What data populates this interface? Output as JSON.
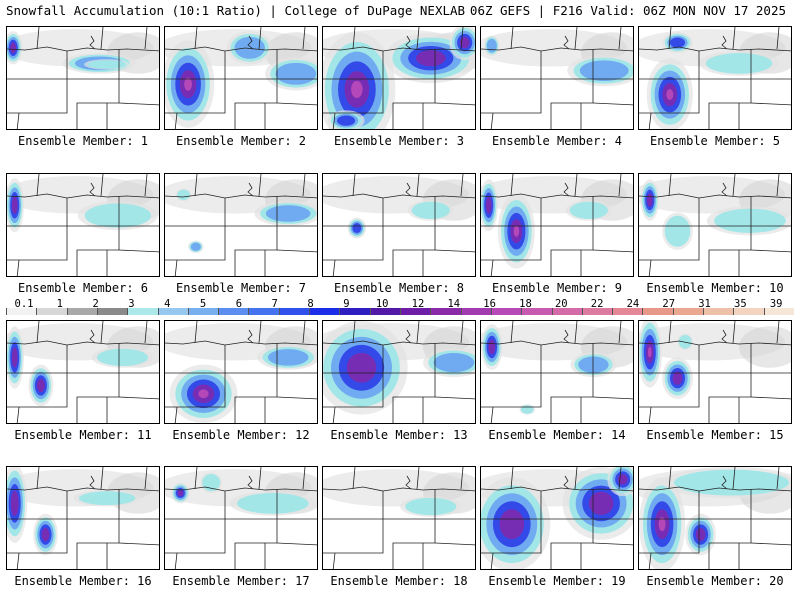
{
  "header": {
    "left": "Snowfall Accumulation (10:1 Ratio) | College of DuPage NEXLAB",
    "right": "06Z GEFS | F216 Valid: 06Z MON NOV 17 2025"
  },
  "colorbar": {
    "labels": [
      "0.1",
      "1",
      "2",
      "3",
      "4",
      "5",
      "6",
      "7",
      "8",
      "9",
      "10",
      "12",
      "14",
      "16",
      "18",
      "20",
      "22",
      "24",
      "27",
      "31",
      "35",
      "39"
    ],
    "colors": [
      "#f2f2f2",
      "#d7d7d7",
      "#a8a8a8",
      "#8a8a8a",
      "#ace8ea",
      "#96c8ef",
      "#78b0ef",
      "#5c8ef2",
      "#4572ee",
      "#2f50ea",
      "#1a2ee8",
      "#2f1fc0",
      "#5218a8",
      "#6d1ca8",
      "#8a2aa8",
      "#a23ab0",
      "#b84ab8",
      "#c85ab0",
      "#d46aa8",
      "#dc7aa0",
      "#e48898",
      "#e89888",
      "#eba890",
      "#eec0a8",
      "#f2d4c0",
      "#f6e6d8"
    ]
  },
  "members": [
    {
      "label": "Ensemble Member: 1",
      "blobs": [
        [
          0.04,
          0.2,
          0.06,
          0.16,
          4
        ],
        [
          0.6,
          0.35,
          0.24,
          0.1,
          2
        ],
        [
          0.65,
          0.36,
          0.15,
          0.05,
          1
        ]
      ]
    },
    {
      "label": "Ensemble Member: 2",
      "blobs": [
        [
          0.15,
          0.55,
          0.17,
          0.42,
          5
        ],
        [
          0.55,
          0.2,
          0.15,
          0.16,
          2
        ],
        [
          0.85,
          0.45,
          0.2,
          0.16,
          2
        ]
      ]
    },
    {
      "label": "Ensemble Member: 3",
      "blobs": [
        [
          0.22,
          0.6,
          0.25,
          0.55,
          5
        ],
        [
          0.7,
          0.3,
          0.3,
          0.24,
          4
        ],
        [
          0.92,
          0.15,
          0.1,
          0.17,
          4
        ],
        [
          0.15,
          0.9,
          0.12,
          0.1,
          3
        ]
      ]
    },
    {
      "label": "Ensemble Member: 4",
      "blobs": [
        [
          0.07,
          0.18,
          0.05,
          0.1,
          2
        ],
        [
          0.8,
          0.42,
          0.24,
          0.15,
          2
        ]
      ]
    },
    {
      "label": "Ensemble Member: 5",
      "blobs": [
        [
          0.2,
          0.65,
          0.15,
          0.35,
          5
        ],
        [
          0.65,
          0.35,
          0.26,
          0.12,
          1
        ],
        [
          0.25,
          0.15,
          0.1,
          0.1,
          3
        ]
      ]
    },
    {
      "label": "Ensemble Member: 6",
      "blobs": [
        [
          0.05,
          0.3,
          0.06,
          0.26,
          4
        ],
        [
          0.72,
          0.4,
          0.26,
          0.14,
          1
        ]
      ]
    },
    {
      "label": "Ensemble Member: 7",
      "blobs": [
        [
          0.8,
          0.38,
          0.22,
          0.12,
          2
        ],
        [
          0.2,
          0.7,
          0.05,
          0.06,
          2
        ],
        [
          0.12,
          0.2,
          0.05,
          0.06,
          1
        ]
      ]
    },
    {
      "label": "Ensemble Member: 8",
      "blobs": [
        [
          0.22,
          0.52,
          0.06,
          0.1,
          3
        ],
        [
          0.7,
          0.35,
          0.15,
          0.1,
          1
        ]
      ]
    },
    {
      "label": "Ensemble Member: 9",
      "blobs": [
        [
          0.23,
          0.55,
          0.12,
          0.36,
          5
        ],
        [
          0.05,
          0.3,
          0.06,
          0.25,
          4
        ],
        [
          0.7,
          0.35,
          0.15,
          0.1,
          1
        ]
      ]
    },
    {
      "label": "Ensemble Member: 10",
      "blobs": [
        [
          0.72,
          0.45,
          0.28,
          0.14,
          1
        ],
        [
          0.07,
          0.25,
          0.06,
          0.2,
          4
        ],
        [
          0.25,
          0.55,
          0.1,
          0.18,
          1
        ]
      ]
    },
    {
      "label": "Ensemble Member: 11",
      "blobs": [
        [
          0.05,
          0.35,
          0.06,
          0.3,
          4
        ],
        [
          0.22,
          0.62,
          0.08,
          0.2,
          4
        ],
        [
          0.75,
          0.35,
          0.2,
          0.1,
          1
        ]
      ]
    },
    {
      "label": "Ensemble Member: 12",
      "blobs": [
        [
          0.25,
          0.7,
          0.22,
          0.28,
          5
        ],
        [
          0.8,
          0.35,
          0.2,
          0.12,
          2
        ]
      ]
    },
    {
      "label": "Ensemble Member: 13",
      "blobs": [
        [
          0.25,
          0.45,
          0.3,
          0.45,
          4
        ],
        [
          0.85,
          0.4,
          0.2,
          0.14,
          2
        ]
      ]
    },
    {
      "label": "Ensemble Member: 14",
      "blobs": [
        [
          0.07,
          0.25,
          0.07,
          0.22,
          4
        ],
        [
          0.73,
          0.42,
          0.15,
          0.12,
          2
        ],
        [
          0.3,
          0.85,
          0.05,
          0.05,
          1
        ]
      ]
    },
    {
      "label": "Ensemble Member: 15",
      "blobs": [
        [
          0.07,
          0.3,
          0.08,
          0.34,
          5
        ],
        [
          0.25,
          0.55,
          0.1,
          0.2,
          4
        ],
        [
          0.3,
          0.2,
          0.05,
          0.08,
          1
        ]
      ]
    },
    {
      "label": "Ensemble Member: 16",
      "blobs": [
        [
          0.05,
          0.35,
          0.08,
          0.38,
          4
        ],
        [
          0.25,
          0.65,
          0.08,
          0.2,
          4
        ],
        [
          0.65,
          0.3,
          0.22,
          0.08,
          1
        ]
      ]
    },
    {
      "label": "Ensemble Member: 17",
      "blobs": [
        [
          0.1,
          0.25,
          0.06,
          0.1,
          4
        ],
        [
          0.3,
          0.15,
          0.07,
          0.1,
          1
        ],
        [
          0.7,
          0.35,
          0.28,
          0.12,
          1
        ]
      ]
    },
    {
      "label": "Ensemble Member: 18",
      "blobs": [
        [
          0.7,
          0.38,
          0.2,
          0.1,
          1
        ]
      ]
    },
    {
      "label": "Ensemble Member: 19",
      "blobs": [
        [
          0.2,
          0.55,
          0.25,
          0.45,
          4
        ],
        [
          0.78,
          0.35,
          0.25,
          0.35,
          4
        ],
        [
          0.92,
          0.12,
          0.1,
          0.16,
          4
        ]
      ]
    },
    {
      "label": "Ensemble Member: 20",
      "blobs": [
        [
          0.15,
          0.55,
          0.15,
          0.45,
          5
        ],
        [
          0.6,
          0.15,
          0.45,
          0.15,
          1
        ],
        [
          0.4,
          0.65,
          0.1,
          0.2,
          4
        ]
      ]
    }
  ]
}
